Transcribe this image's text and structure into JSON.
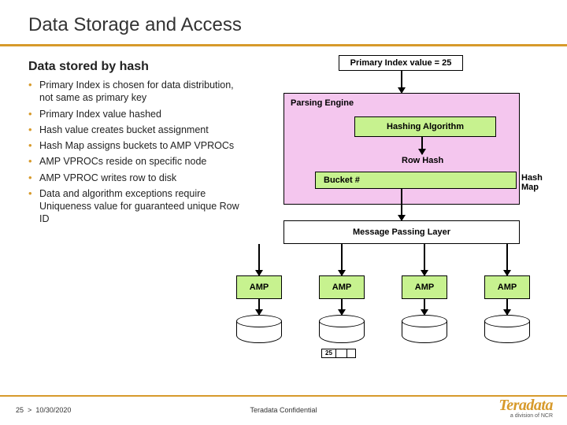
{
  "colors": {
    "accent": "#d79a2b",
    "node_green": "#c7f28f",
    "engine_pink": "#f4c6ee",
    "box_bg": "#ffffff",
    "border": "#000000",
    "text": "#222222"
  },
  "title": "Data Storage and Access",
  "subhead": "Data stored by hash",
  "bullets": [
    "Primary Index is chosen for data distribution, not same as primary key",
    "Primary Index value hashed",
    "Hash value creates bucket assignment",
    "Hash Map assigns buckets to AMP VPROCs",
    "AMP VPROCs reside on specific node",
    "AMP VPROC writes row to disk",
    "Data and algorithm exceptions require Uniqueness value for guaranteed unique Row ID"
  ],
  "diagram": {
    "primary_index_value_label": "Primary Index value = 25",
    "parsing_engine_label": "Parsing Engine",
    "hashing_algorithm_label": "Hashing Algorithm",
    "row_hash_label": "Row Hash",
    "bucket_label": "Bucket #",
    "hash_map_label": "Hash Map",
    "mpl_label": "Message Passing Layer",
    "amps": [
      "AMP",
      "AMP",
      "AMP",
      "AMP"
    ],
    "record_value": "25"
  },
  "footer": {
    "page_prefix": "25",
    "sep": ">",
    "date": "10/30/2020",
    "confidential": "Teradata Confidential",
    "brand": "Teradata",
    "brand_sub": "a division of NCR"
  }
}
